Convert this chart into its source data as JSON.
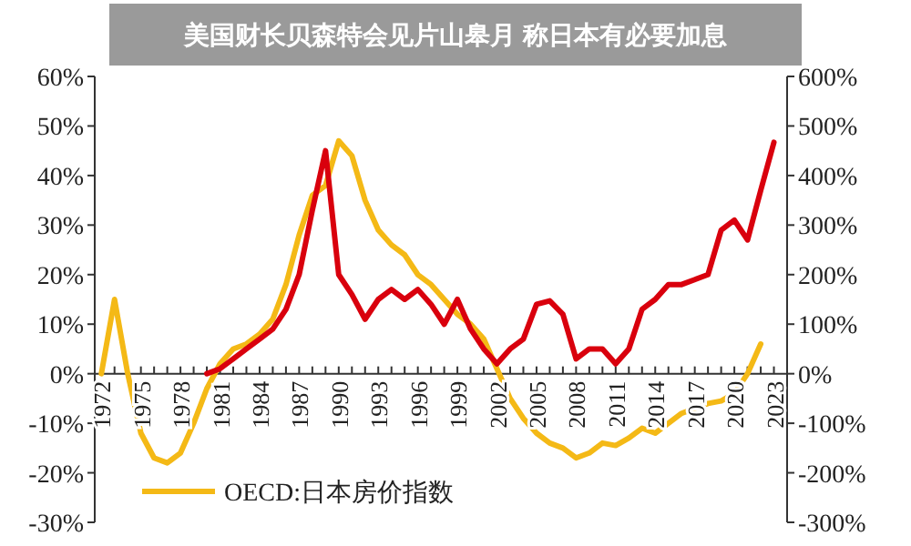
{
  "chart_data": {
    "type": "line",
    "title": "美国财长贝森特会见片山皋月 称日本有必要加息",
    "x": [
      1972,
      1973,
      1974,
      1975,
      1976,
      1977,
      1978,
      1979,
      1980,
      1981,
      1982,
      1983,
      1984,
      1985,
      1986,
      1987,
      1988,
      1989,
      1990,
      1991,
      1992,
      1993,
      1994,
      1995,
      1996,
      1997,
      1998,
      1999,
      2000,
      2001,
      2002,
      2003,
      2004,
      2005,
      2006,
      2007,
      2008,
      2009,
      2010,
      2011,
      2012,
      2013,
      2014,
      2015,
      2016,
      2017,
      2018,
      2019,
      2020,
      2021,
      2022,
      2023
    ],
    "series": [
      {
        "name": "OECD:日本房价指数",
        "color": "#f4b916",
        "values": [
          0,
          15,
          0,
          -12,
          -17,
          -18,
          -16,
          -10,
          -3,
          2,
          5,
          6,
          8,
          11,
          18,
          28,
          36,
          38,
          47,
          44,
          35,
          29,
          26,
          24,
          20,
          18,
          15,
          12,
          10,
          7,
          1,
          -5,
          -9,
          -12,
          -14,
          -15,
          -17,
          -16,
          -14,
          -14.5,
          -13,
          -11,
          -12,
          -10,
          -8,
          -7,
          -6,
          -5.5,
          -4,
          0,
          6,
          null
        ]
      },
      {
        "color": "#d9000d",
        "axis": "y2",
        "values": [
          null,
          null,
          null,
          null,
          null,
          null,
          null,
          null,
          0,
          10,
          30,
          50,
          70,
          90,
          130,
          200,
          330,
          450,
          200,
          160,
          110,
          150,
          170,
          150,
          170,
          140,
          100,
          150,
          90,
          50,
          20,
          50,
          70,
          140,
          147,
          120,
          30,
          50,
          50,
          20,
          50,
          130,
          150,
          180,
          180,
          190,
          200,
          290,
          310,
          270,
          370,
          467
        ]
      }
    ],
    "xlim": [
      1971.5,
      2024
    ],
    "xticks": [
      {
        "value": 1972,
        "label": "1972"
      },
      {
        "value": 1973,
        "label": null
      },
      {
        "value": 1974,
        "label": null
      },
      {
        "value": 1975,
        "label": "1975"
      },
      {
        "value": 1976,
        "label": null
      },
      {
        "value": 1977,
        "label": null
      },
      {
        "value": 1978,
        "label": "1978"
      },
      {
        "value": 1979,
        "label": null
      },
      {
        "value": 1980,
        "label": null
      },
      {
        "value": 1981,
        "label": "1981"
      },
      {
        "value": 1982,
        "label": null
      },
      {
        "value": 1983,
        "label": null
      },
      {
        "value": 1984,
        "label": "1984"
      },
      {
        "value": 1985,
        "label": null
      },
      {
        "value": 1986,
        "label": null
      },
      {
        "value": 1987,
        "label": "1987"
      },
      {
        "value": 1988,
        "label": null
      },
      {
        "value": 1989,
        "label": null
      },
      {
        "value": 1990,
        "label": "1990"
      },
      {
        "value": 1991,
        "label": null
      },
      {
        "value": 1992,
        "label": null
      },
      {
        "value": 1993,
        "label": "1993"
      },
      {
        "value": 1994,
        "label": null
      },
      {
        "value": 1995,
        "label": null
      },
      {
        "value": 1996,
        "label": "1996"
      },
      {
        "value": 1997,
        "label": null
      },
      {
        "value": 1998,
        "label": null
      },
      {
        "value": 1999,
        "label": "1999"
      },
      {
        "value": 2000,
        "label": null
      },
      {
        "value": 2001,
        "label": null
      },
      {
        "value": 2002,
        "label": "2002"
      },
      {
        "value": 2003,
        "label": null
      },
      {
        "value": 2004,
        "label": null
      },
      {
        "value": 2005,
        "label": "2005"
      },
      {
        "value": 2006,
        "label": null
      },
      {
        "value": 2007,
        "label": null
      },
      {
        "value": 2008,
        "label": "2008"
      },
      {
        "value": 2009,
        "label": null
      },
      {
        "value": 2010,
        "label": null
      },
      {
        "value": 2011,
        "label": "2011"
      },
      {
        "value": 2012,
        "label": null
      },
      {
        "value": 2013,
        "label": null
      },
      {
        "value": 2014,
        "label": "2014"
      },
      {
        "value": 2015,
        "label": null
      },
      {
        "value": 2016,
        "label": null
      },
      {
        "value": 2017,
        "label": "2017"
      },
      {
        "value": 2018,
        "label": null
      },
      {
        "value": 2019,
        "label": null
      },
      {
        "value": 2020,
        "label": "2020"
      },
      {
        "value": 2021,
        "label": null
      },
      {
        "value": 2022,
        "label": null
      },
      {
        "value": 2023,
        "label": "2023"
      }
    ],
    "ylim": [
      -30,
      60
    ],
    "yticks": [
      {
        "value": -30,
        "label": "-30%"
      },
      {
        "value": -20,
        "label": "-20%"
      },
      {
        "value": -10,
        "label": "-10%"
      },
      {
        "value": 0,
        "label": "0%"
      },
      {
        "value": 10,
        "label": "10%"
      },
      {
        "value": 20,
        "label": "20%"
      },
      {
        "value": 30,
        "label": "30%"
      },
      {
        "value": 40,
        "label": "40%"
      },
      {
        "value": 50,
        "label": "50%"
      },
      {
        "value": 60,
        "label": "60%"
      }
    ],
    "y2lim": [
      -300,
      600
    ],
    "y2ticks": [
      {
        "value": -300,
        "label": "-300%"
      },
      {
        "value": -200,
        "label": "-200%"
      },
      {
        "value": -100,
        "label": "-100%"
      },
      {
        "value": 0,
        "label": "0%"
      },
      {
        "value": 100,
        "label": "100%"
      },
      {
        "value": 200,
        "label": "200%"
      },
      {
        "value": 300,
        "label": "300%"
      },
      {
        "value": 400,
        "label": "400%"
      },
      {
        "value": 500,
        "label": "500%"
      },
      {
        "value": 600,
        "label": "600%"
      }
    ],
    "grid": false,
    "legend": "bottom",
    "marker": "none",
    "line_style": "solid"
  }
}
